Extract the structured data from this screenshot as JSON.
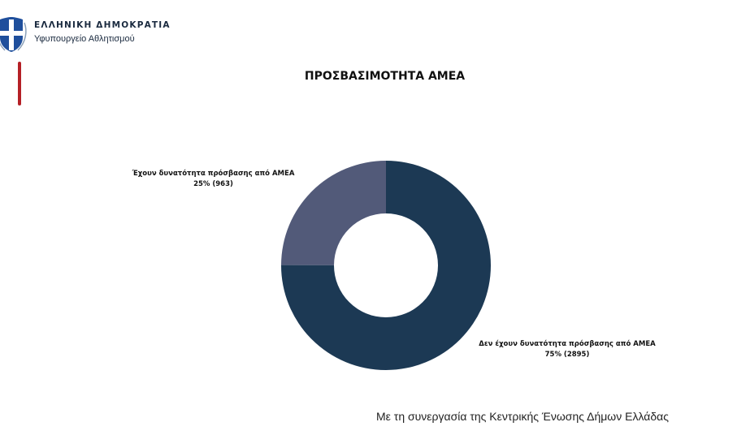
{
  "header": {
    "country": "ΕΛΛΗΝΙΚΗ ΔΗΜΟΚΡΑΤΙΑ",
    "ministry": "Υφυπουργείο Αθλητισμού",
    "emblem_icon": "greek-coat-of-arms"
  },
  "colors": {
    "accent_bar": "#b52026"
  },
  "chart_data": {
    "type": "pie",
    "donut": true,
    "title": "ΠΡΟΣΒΑΣΙΜΟΤΗΤΑ ΑΜΕΑ",
    "slices": [
      {
        "label": "Έχουν δυνατότητα πρόσβασης από ΑΜΕΑ",
        "value": 963,
        "percent_label": "25% (963)",
        "color": "#525a79"
      },
      {
        "label": "Δεν έχουν δυνατότητα πρόσβασης από ΑΜΕΑ",
        "value": 2895,
        "percent_label": "75% (2895)",
        "color": "#1c3954"
      }
    ]
  },
  "footer": {
    "text": "Με τη συνεργασία της Κεντρικής Ένωσης Δήμων Ελλάδας"
  }
}
